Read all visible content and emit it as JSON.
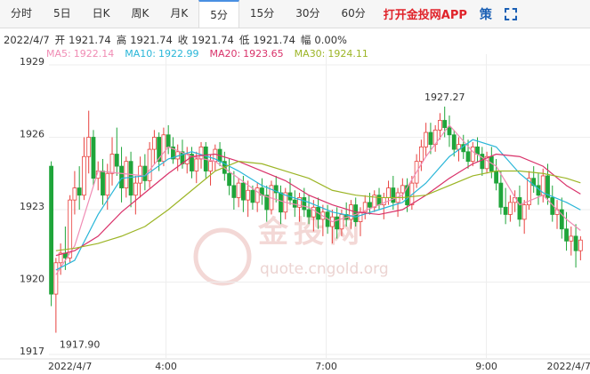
{
  "tabs": {
    "items": [
      "分时",
      "5日",
      "日K",
      "周K",
      "月K",
      "5分",
      "15分",
      "30分",
      "60分"
    ],
    "active": 5,
    "app_link": "打开金投网APP",
    "strategy": "策"
  },
  "info": {
    "date": "2022/4/7",
    "items": [
      {
        "label": "开",
        "value": 1921.74
      },
      {
        "label": "高",
        "value": 1921.74
      },
      {
        "label": "收",
        "value": 1921.74
      },
      {
        "label": "低",
        "value": 1921.74
      },
      {
        "label": "幅",
        "value": "0.00%"
      }
    ]
  },
  "watermark": {
    "name": "金投网",
    "url": "quote.cngold.org"
  },
  "chart_data": {
    "type": "candlestick",
    "up_color": "#e8413e",
    "down_color": "#1fa53a",
    "ylim": [
      1917,
      1929
    ],
    "yticks": [
      1917,
      1920,
      1923,
      1926,
      1929
    ],
    "grid": true,
    "xlim": [
      0,
      114
    ],
    "xticks": [
      {
        "value": 4,
        "label": "2022/4/7"
      },
      {
        "value": 24.5,
        "label": "4:00"
      },
      {
        "value": 58.7,
        "label": "7:00"
      },
      {
        "value": 92.9,
        "label": "9:00"
      },
      {
        "value": 110.5,
        "label": "2022/4/7"
      }
    ],
    "high_label": "1927.27",
    "low_label": "1917.90",
    "candles": [
      [
        1924.8,
        1925.0,
        1919.0,
        1919.5
      ],
      [
        1919.5,
        1921.0,
        1917.9,
        1920.8
      ],
      [
        1920.8,
        1921.6,
        1920.3,
        1921.2
      ],
      [
        1921.2,
        1922.3,
        1920.5,
        1921.0
      ],
      [
        1921.0,
        1923.6,
        1920.8,
        1923.4
      ],
      [
        1923.4,
        1924.6,
        1922.8,
        1923.9
      ],
      [
        1923.9,
        1924.8,
        1923.0,
        1923.6
      ],
      [
        1923.6,
        1926.0,
        1923.4,
        1925.2
      ],
      [
        1925.2,
        1927.1,
        1924.5,
        1926.0
      ],
      [
        1926.0,
        1926.3,
        1924.0,
        1924.3
      ],
      [
        1924.3,
        1925.0,
        1923.8,
        1924.6
      ],
      [
        1924.6,
        1925.1,
        1923.2,
        1923.6
      ],
      [
        1923.6,
        1924.9,
        1923.0,
        1924.5
      ],
      [
        1924.5,
        1926.0,
        1924.0,
        1925.3
      ],
      [
        1925.3,
        1926.4,
        1924.4,
        1924.8
      ],
      [
        1924.8,
        1925.6,
        1923.3,
        1923.9
      ],
      [
        1923.9,
        1925.2,
        1923.5,
        1925.0
      ],
      [
        1925.0,
        1925.4,
        1923.1,
        1923.6
      ],
      [
        1923.6,
        1924.4,
        1922.8,
        1924.1
      ],
      [
        1924.1,
        1925.2,
        1923.5,
        1924.8
      ],
      [
        1924.8,
        1925.3,
        1923.8,
        1924.2
      ],
      [
        1924.2,
        1925.8,
        1923.9,
        1925.5
      ],
      [
        1925.5,
        1926.3,
        1924.9,
        1926.0
      ],
      [
        1926.0,
        1926.2,
        1924.6,
        1925.0
      ],
      [
        1925.0,
        1926.4,
        1924.8,
        1926.1
      ],
      [
        1926.1,
        1926.5,
        1925.3,
        1925.6
      ],
      [
        1925.6,
        1926.0,
        1924.9,
        1925.1
      ],
      [
        1925.1,
        1925.7,
        1924.6,
        1925.4
      ],
      [
        1925.4,
        1925.9,
        1924.7,
        1924.9
      ],
      [
        1924.9,
        1925.6,
        1924.5,
        1925.3
      ],
      [
        1925.3,
        1925.6,
        1924.3,
        1924.6
      ],
      [
        1924.6,
        1925.4,
        1924.1,
        1925.1
      ],
      [
        1925.1,
        1925.8,
        1924.7,
        1925.6
      ],
      [
        1925.6,
        1925.8,
        1924.3,
        1924.6
      ],
      [
        1924.6,
        1925.3,
        1924.0,
        1925.0
      ],
      [
        1925.0,
        1925.7,
        1924.6,
        1925.5
      ],
      [
        1925.5,
        1925.8,
        1924.8,
        1925.0
      ],
      [
        1925.0,
        1925.4,
        1924.2,
        1924.5
      ],
      [
        1924.5,
        1925.1,
        1923.6,
        1924.0
      ],
      [
        1924.0,
        1924.6,
        1923.0,
        1923.5
      ],
      [
        1923.5,
        1924.3,
        1923.1,
        1924.1
      ],
      [
        1924.1,
        1924.4,
        1922.9,
        1923.4
      ],
      [
        1923.4,
        1924.2,
        1922.7,
        1923.8
      ],
      [
        1923.8,
        1924.0,
        1923.0,
        1923.3
      ],
      [
        1923.3,
        1924.1,
        1922.9,
        1923.9
      ],
      [
        1923.9,
        1924.3,
        1923.2,
        1923.6
      ],
      [
        1923.6,
        1924.0,
        1922.5,
        1923.0
      ],
      [
        1923.0,
        1924.2,
        1922.8,
        1924.0
      ],
      [
        1924.0,
        1924.4,
        1923.3,
        1923.7
      ],
      [
        1923.7,
        1924.0,
        1922.4,
        1922.9
      ],
      [
        1922.9,
        1923.9,
        1922.6,
        1923.7
      ],
      [
        1923.7,
        1924.3,
        1923.2,
        1923.4
      ],
      [
        1923.4,
        1923.8,
        1922.7,
        1923.1
      ],
      [
        1923.1,
        1923.7,
        1922.5,
        1923.5
      ],
      [
        1923.5,
        1923.9,
        1922.7,
        1923.0
      ],
      [
        1923.0,
        1923.6,
        1922.4,
        1922.7
      ],
      [
        1922.7,
        1923.4,
        1922.1,
        1923.1
      ],
      [
        1923.1,
        1923.5,
        1922.2,
        1922.6
      ],
      [
        1922.6,
        1923.2,
        1921.9,
        1922.9
      ],
      [
        1922.9,
        1923.2,
        1922.0,
        1922.3
      ],
      [
        1922.3,
        1923.0,
        1921.6,
        1922.7
      ],
      [
        1922.7,
        1923.1,
        1921.8,
        1922.2
      ],
      [
        1922.2,
        1923.0,
        1921.9,
        1922.8
      ],
      [
        1922.8,
        1923.3,
        1922.3,
        1922.6
      ],
      [
        1922.6,
        1923.4,
        1922.2,
        1923.2
      ],
      [
        1923.2,
        1923.5,
        1922.3,
        1922.5
      ],
      [
        1922.5,
        1923.1,
        1921.9,
        1922.9
      ],
      [
        1922.9,
        1923.6,
        1922.6,
        1923.3
      ],
      [
        1923.3,
        1923.7,
        1922.8,
        1923.1
      ],
      [
        1923.1,
        1923.8,
        1922.9,
        1923.6
      ],
      [
        1923.6,
        1923.9,
        1923.0,
        1923.2
      ],
      [
        1923.2,
        1923.7,
        1922.6,
        1923.5
      ],
      [
        1923.5,
        1924.2,
        1923.2,
        1923.9
      ],
      [
        1923.9,
        1924.4,
        1923.0,
        1923.3
      ],
      [
        1923.3,
        1923.9,
        1922.7,
        1923.7
      ],
      [
        1923.7,
        1924.3,
        1923.4,
        1924.0
      ],
      [
        1924.0,
        1924.3,
        1922.9,
        1923.2
      ],
      [
        1923.2,
        1924.4,
        1923.0,
        1924.1
      ],
      [
        1924.1,
        1925.3,
        1923.9,
        1925.0
      ],
      [
        1925.0,
        1925.9,
        1924.6,
        1925.6
      ],
      [
        1925.6,
        1926.6,
        1925.2,
        1926.2
      ],
      [
        1926.2,
        1926.6,
        1925.3,
        1925.7
      ],
      [
        1925.7,
        1926.5,
        1925.4,
        1926.3
      ],
      [
        1926.3,
        1927.0,
        1925.9,
        1926.7
      ],
      [
        1926.7,
        1927.27,
        1926.0,
        1926.4
      ],
      [
        1926.4,
        1926.9,
        1925.6,
        1926.1
      ],
      [
        1926.1,
        1926.3,
        1925.2,
        1925.5
      ],
      [
        1925.5,
        1926.0,
        1925.0,
        1925.7
      ],
      [
        1925.7,
        1926.1,
        1925.1,
        1925.4
      ],
      [
        1925.4,
        1925.9,
        1924.7,
        1925.0
      ],
      [
        1925.0,
        1925.8,
        1924.8,
        1925.6
      ],
      [
        1925.6,
        1926.0,
        1925.0,
        1925.3
      ],
      [
        1925.3,
        1925.6,
        1924.4,
        1924.7
      ],
      [
        1924.7,
        1925.4,
        1924.5,
        1925.2
      ],
      [
        1925.2,
        1925.6,
        1924.3,
        1924.6
      ],
      [
        1924.6,
        1925.1,
        1923.8,
        1924.1
      ],
      [
        1924.1,
        1924.6,
        1922.8,
        1923.1
      ],
      [
        1923.1,
        1923.9,
        1922.4,
        1922.8
      ],
      [
        1922.8,
        1923.6,
        1922.5,
        1923.3
      ],
      [
        1923.3,
        1923.8,
        1922.9,
        1923.5
      ],
      [
        1923.5,
        1924.0,
        1922.3,
        1922.6
      ],
      [
        1922.6,
        1923.4,
        1922.0,
        1923.2
      ],
      [
        1923.2,
        1924.6,
        1923.0,
        1924.3
      ],
      [
        1924.3,
        1924.8,
        1923.7,
        1924.0
      ],
      [
        1924.0,
        1924.5,
        1923.2,
        1923.6
      ],
      [
        1923.6,
        1924.7,
        1923.3,
        1924.4
      ],
      [
        1924.4,
        1924.9,
        1923.2,
        1923.5
      ],
      [
        1923.5,
        1924.0,
        1922.5,
        1922.8
      ],
      [
        1922.8,
        1923.4,
        1922.2,
        1923.0
      ],
      [
        1923.0,
        1923.5,
        1921.8,
        1922.2
      ],
      [
        1922.2,
        1922.9,
        1921.3,
        1921.7
      ],
      [
        1921.7,
        1922.3,
        1921.1,
        1921.9
      ],
      [
        1921.9,
        1922.4,
        1920.6,
        1921.3
      ],
      [
        1921.3,
        1921.9,
        1920.9,
        1921.74
      ]
    ],
    "series": [
      {
        "name": "MA5:",
        "color": "#f08cb4",
        "x": [
          1,
          5,
          10,
          15,
          20,
          25,
          30,
          35,
          40,
          45,
          50,
          55,
          60,
          65,
          70,
          75,
          80,
          85,
          90,
          95,
          100,
          105,
          110,
          113
        ],
        "values": [
          1920.3,
          1921.5,
          1924.6,
          1924.5,
          1924.4,
          1925.6,
          1925.2,
          1925.0,
          1924.3,
          1923.6,
          1923.3,
          1923.1,
          1922.5,
          1922.8,
          1923.2,
          1923.6,
          1925.2,
          1926.5,
          1925.4,
          1924.8,
          1923.2,
          1923.6,
          1922.6,
          1922.14
        ]
      },
      {
        "name": "MA10:",
        "color": "#29b6d8",
        "x": [
          1,
          5,
          10,
          15,
          20,
          25,
          30,
          35,
          40,
          45,
          50,
          55,
          60,
          65,
          70,
          75,
          80,
          85,
          90,
          95,
          100,
          105,
          110,
          113
        ],
        "values": [
          1920.5,
          1920.9,
          1922.8,
          1924.3,
          1924.4,
          1925.1,
          1925.4,
          1925.1,
          1924.6,
          1924.0,
          1923.6,
          1923.3,
          1922.9,
          1922.7,
          1923.0,
          1923.3,
          1924.1,
          1925.2,
          1925.9,
          1925.6,
          1924.5,
          1923.7,
          1923.3,
          1922.99
        ]
      },
      {
        "name": "MA20:",
        "color": "#d9326a",
        "x": [
          1,
          5,
          10,
          15,
          20,
          25,
          30,
          35,
          40,
          45,
          50,
          55,
          60,
          65,
          70,
          75,
          80,
          85,
          90,
          95,
          100,
          105,
          110,
          113
        ],
        "values": [
          1921.1,
          1921.3,
          1921.9,
          1922.9,
          1923.7,
          1924.5,
          1925.2,
          1925.3,
          1925.0,
          1924.6,
          1924.2,
          1923.6,
          1923.2,
          1922.9,
          1922.8,
          1923.0,
          1923.6,
          1924.3,
          1924.9,
          1925.3,
          1925.2,
          1924.8,
          1924.0,
          1923.65
        ]
      },
      {
        "name": "MA30:",
        "color": "#9cb526",
        "x": [
          1,
          5,
          10,
          15,
          20,
          25,
          30,
          35,
          40,
          45,
          50,
          55,
          60,
          65,
          70,
          75,
          80,
          85,
          90,
          95,
          100,
          105,
          110,
          113
        ],
        "values": [
          1921.3,
          1921.4,
          1921.6,
          1921.9,
          1922.3,
          1923.0,
          1923.8,
          1924.6,
          1925.0,
          1924.9,
          1924.6,
          1924.3,
          1923.8,
          1923.6,
          1923.5,
          1923.5,
          1923.6,
          1924.0,
          1924.4,
          1924.6,
          1924.6,
          1924.5,
          1924.3,
          1924.11
        ]
      }
    ]
  }
}
